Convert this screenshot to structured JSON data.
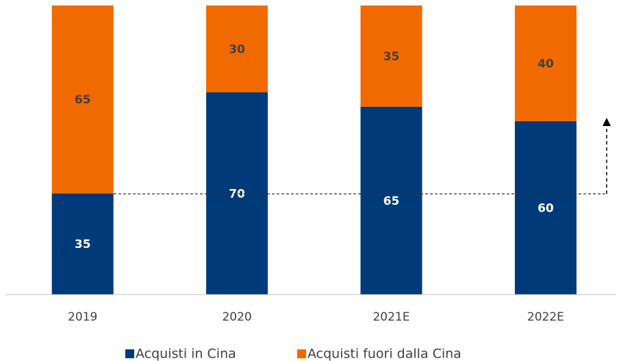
{
  "chart_data": {
    "type": "stacked_bar",
    "categories": [
      "2019",
      "2020",
      "2021E",
      "2022E"
    ],
    "series": [
      {
        "name": "Acquisti in Cina",
        "color": "#003a78",
        "values": [
          35,
          70,
          65,
          60
        ]
      },
      {
        "name": "Acquisti fuori dalla Cina",
        "color": "#f06a00",
        "values": [
          65,
          30,
          35,
          40
        ]
      }
    ],
    "ylim": [
      0,
      100
    ]
  }
}
